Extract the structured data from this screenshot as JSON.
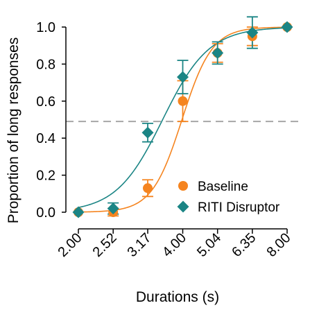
{
  "chart_data": {
    "type": "scatter",
    "xlabel": "Durations (s)",
    "ylabel": "Proportion of long responses",
    "x_scale": "log",
    "xlim": [
      2.0,
      8.0
    ],
    "ylim": [
      0.0,
      1.0
    ],
    "x_ticks": [
      "2.00",
      "2.52",
      "3.17",
      "4.00",
      "5.04",
      "6.35",
      "8.00"
    ],
    "x_tick_values": [
      2.0,
      2.52,
      3.17,
      4.0,
      5.04,
      6.35,
      8.0
    ],
    "y_ticks": [
      "0.0",
      "0.2",
      "0.4",
      "0.6",
      "0.8",
      "1.0"
    ],
    "y_tick_values": [
      0.0,
      0.2,
      0.4,
      0.6,
      0.8,
      1.0
    ],
    "grid": false,
    "legend_position": "bottom-right",
    "reference_line": {
      "y": 0.49,
      "style": "dashed",
      "color": "#a6a6a6"
    },
    "series": [
      {
        "name": "Baseline",
        "marker": "circle",
        "color": "#f5841f",
        "x": [
          2.0,
          2.52,
          3.17,
          4.0,
          5.04,
          6.35,
          8.0
        ],
        "y": [
          0.0,
          0.0,
          0.13,
          0.6,
          0.86,
          0.95,
          1.0
        ],
        "err": [
          0.0,
          0.02,
          0.045,
          0.11,
          0.05,
          0.05,
          0.0
        ],
        "fit_midpoint": 3.98,
        "fit_slope": 10.0
      },
      {
        "name": "RITI Disruptor",
        "marker": "diamond",
        "color": "#1b8585",
        "x": [
          2.0,
          2.52,
          3.17,
          4.0,
          5.04,
          6.35,
          8.0
        ],
        "y": [
          0.0,
          0.02,
          0.43,
          0.73,
          0.86,
          0.97,
          1.0
        ],
        "err": [
          0.0,
          0.03,
          0.05,
          0.09,
          0.06,
          0.085,
          0.0
        ],
        "fit_midpoint": 3.5,
        "fit_slope": 6.5
      }
    ]
  }
}
